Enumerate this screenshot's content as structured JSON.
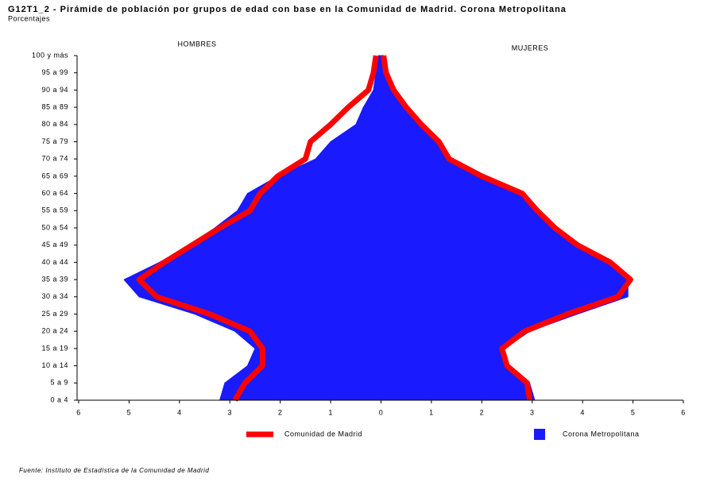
{
  "chart_data": {
    "type": "pyramid",
    "title": "G12T1_2 - Pirámide de población por grupos de edad con base en la Comunidad de Madrid. Corona Metropolitana",
    "subtitle": "Porcentajes",
    "left_label": "HOMBRES",
    "right_label": "MUJERES",
    "source": "Fuente: Instituto de Estadística de la Comunidad de Madrid",
    "categories": [
      "0 a 4",
      "5 a 9",
      "10 a 14",
      "15 a 19",
      "20 a 24",
      "25 a 29",
      "30 a 34",
      "35 a 39",
      "40 a 44",
      "45 a 49",
      "50 a 54",
      "55 a 59",
      "60 a 64",
      "65 a 69",
      "70 a 74",
      "75 a 79",
      "80 a 84",
      "85 a 89",
      "90 a 94",
      "95 a 99",
      "100 y más"
    ],
    "xlim": [
      -6,
      6
    ],
    "xticks": [
      {
        "value": -6,
        "label": "6"
      },
      {
        "value": -5,
        "label": "5"
      },
      {
        "value": -4,
        "label": "4"
      },
      {
        "value": -3,
        "label": "3"
      },
      {
        "value": -2,
        "label": "2"
      },
      {
        "value": -1,
        "label": "1"
      },
      0,
      1,
      2,
      3,
      4,
      5,
      6
    ],
    "series": [
      {
        "name": "Comunidad de Madrid",
        "color": "#ff0000",
        "style": "line",
        "men": [
          -2.9,
          -2.7,
          -2.35,
          -2.35,
          -2.6,
          -3.4,
          -4.45,
          -4.8,
          -4.3,
          -3.75,
          -3.2,
          -2.6,
          -2.4,
          -2.05,
          -1.5,
          -1.4,
          -1.0,
          -0.65,
          -0.25,
          -0.15,
          -0.1
        ],
        "women": [
          2.95,
          2.9,
          2.5,
          2.4,
          2.85,
          3.7,
          4.7,
          4.95,
          4.55,
          3.9,
          3.45,
          3.1,
          2.8,
          2.0,
          1.35,
          1.15,
          0.8,
          0.5,
          0.25,
          0.1,
          0.05
        ]
      },
      {
        "name": "Corona Metropolitana",
        "color": "#1a1aff",
        "style": "area",
        "men": [
          -3.2,
          -3.1,
          -2.65,
          -2.5,
          -2.9,
          -3.7,
          -4.8,
          -5.1,
          -4.4,
          -3.8,
          -3.3,
          -2.85,
          -2.65,
          -2.05,
          -1.3,
          -1.0,
          -0.5,
          -0.35,
          -0.15,
          -0.1,
          -0.05
        ],
        "women": [
          3.05,
          2.95,
          2.5,
          2.45,
          2.95,
          3.9,
          4.9,
          4.9,
          4.55,
          3.9,
          3.45,
          3.1,
          2.8,
          2.05,
          1.35,
          1.15,
          0.8,
          0.55,
          0.3,
          0.15,
          0.05
        ]
      }
    ]
  }
}
